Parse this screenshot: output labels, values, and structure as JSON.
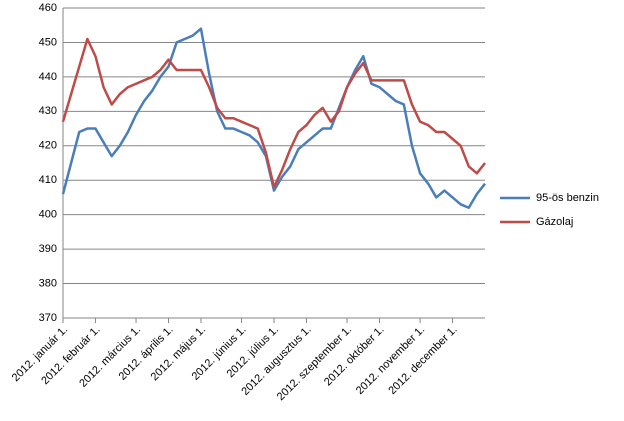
{
  "chart_data": {
    "type": "line",
    "categories": [
      "2012. január 1.",
      null,
      null,
      null,
      "2012. február 1.",
      null,
      null,
      null,
      null,
      "2012. március 1.",
      null,
      null,
      null,
      "2012. április 1.",
      null,
      null,
      null,
      "2012. május 1.",
      null,
      null,
      null,
      null,
      "2012. június 1.",
      null,
      null,
      null,
      "2012. július 1.",
      null,
      null,
      null,
      "2012. augusztus 1.",
      null,
      null,
      null,
      null,
      "2012. szeptember 1.",
      null,
      null,
      null,
      "2012. október 1.",
      null,
      null,
      null,
      null,
      "2012. november 1.",
      null,
      null,
      null,
      "2012. december 1.",
      null,
      null,
      null,
      null
    ],
    "series": [
      {
        "name": "95-ös benzin",
        "color": "#4a7ebb",
        "values": [
          406,
          415,
          424,
          425,
          425,
          421,
          417,
          420,
          424,
          429,
          433,
          436,
          440,
          443,
          450,
          451,
          452,
          454,
          441,
          430,
          425,
          425,
          424,
          423,
          421,
          417,
          407,
          411,
          414,
          419,
          421,
          423,
          425,
          425,
          431,
          437,
          442,
          446,
          438,
          437,
          435,
          433,
          432,
          420,
          412,
          409,
          405,
          407,
          405,
          403,
          402,
          406,
          409
        ]
      },
      {
        "name": "Gázolaj",
        "color": "#be4b48",
        "values": [
          427,
          435,
          443,
          451,
          446,
          437,
          432,
          435,
          437,
          438,
          439,
          440,
          442,
          445,
          442,
          442,
          442,
          442,
          437,
          431,
          428,
          428,
          427,
          426,
          425,
          418,
          408,
          413,
          419,
          424,
          426,
          429,
          431,
          427,
          430,
          437,
          441,
          444,
          439,
          439,
          439,
          439,
          439,
          432,
          427,
          426,
          424,
          424,
          422,
          420,
          414,
          412,
          415
        ]
      }
    ],
    "ylim": [
      370,
      460
    ],
    "yticks": [
      370,
      380,
      390,
      400,
      410,
      420,
      430,
      440,
      450,
      460
    ],
    "grid": true,
    "legend": "right"
  }
}
